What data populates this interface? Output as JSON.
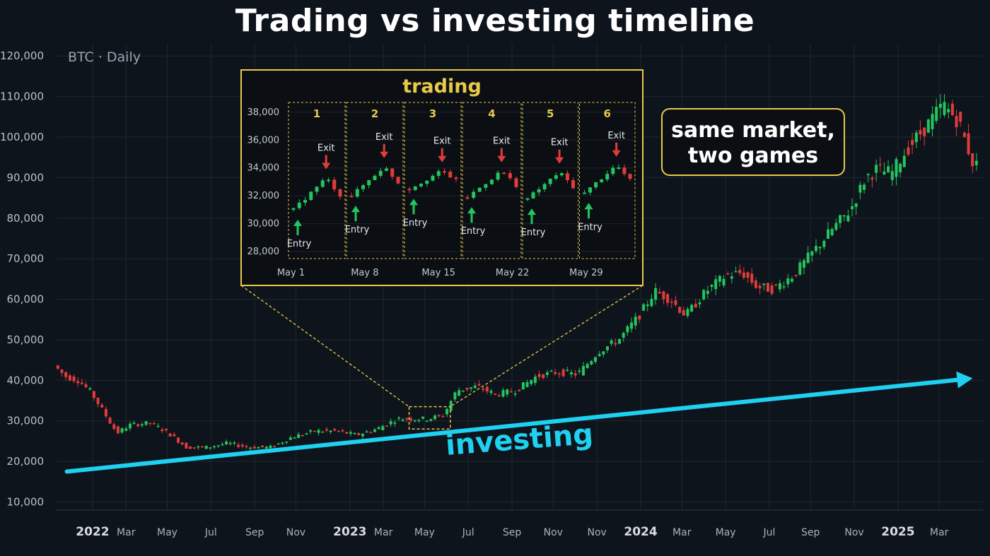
{
  "title": "Trading vs investing timeline",
  "subtitle": "BTC · Daily",
  "callout": {
    "line1": "same market,",
    "line2": "two games"
  },
  "colors": {
    "background": "#0e141b",
    "up": "#22c55e",
    "down": "#e23b3b",
    "accent_yellow": "#e9c94a",
    "investing_cyan": "#1fd0f0",
    "grid": "#1e2731"
  },
  "chart_data": [
    {
      "type": "line",
      "subtitle": "BTC · Daily",
      "ylim": [
        8000,
        123000
      ],
      "y_ticks": [
        10000,
        20000,
        30000,
        40000,
        50000,
        60000,
        70000,
        80000,
        90000,
        100000,
        110000,
        120000
      ],
      "y_tick_labels": [
        "10,000",
        "20,000",
        "30,000",
        "40,000",
        "50,000",
        "60,000",
        "70,000",
        "80,000",
        "90,000",
        "100,000",
        "110,000",
        "120,000"
      ],
      "x_ticks": [
        {
          "t": 2022.04,
          "label": "2022",
          "bold": true
        },
        {
          "t": 2022.17,
          "label": "Mar",
          "bold": false
        },
        {
          "t": 2022.33,
          "label": "May",
          "bold": false
        },
        {
          "t": 2022.5,
          "label": "Jul",
          "bold": false
        },
        {
          "t": 2022.67,
          "label": "Sep",
          "bold": false
        },
        {
          "t": 2022.83,
          "label": "Nov",
          "bold": false
        },
        {
          "t": 2023.04,
          "label": "2023",
          "bold": true
        },
        {
          "t": 2023.17,
          "label": "Mar",
          "bold": false
        },
        {
          "t": 2023.33,
          "label": "May",
          "bold": false
        },
        {
          "t": 2023.5,
          "label": "Jul",
          "bold": false
        },
        {
          "t": 2023.67,
          "label": "Sep",
          "bold": false
        },
        {
          "t": 2023.83,
          "label": "Nov",
          "bold": false
        },
        {
          "t": 2024.0,
          "label": "Nov",
          "bold": false
        },
        {
          "t": 2024.17,
          "label": "2024",
          "bold": true
        },
        {
          "t": 2024.33,
          "label": "Mar",
          "bold": false
        },
        {
          "t": 2024.5,
          "label": "May",
          "bold": false
        },
        {
          "t": 2024.67,
          "label": "Jul",
          "bold": false
        },
        {
          "t": 2024.83,
          "label": "Sep",
          "bold": false
        },
        {
          "t": 2025.0,
          "label": "Nov",
          "bold": false
        },
        {
          "t": 2025.17,
          "label": "2025",
          "bold": true
        },
        {
          "t": 2025.33,
          "label": "Mar",
          "bold": false
        }
      ],
      "xlim": [
        2021.9,
        2025.5
      ],
      "price_path": [
        [
          2021.9,
          44000
        ],
        [
          2021.95,
          41000
        ],
        [
          2022.0,
          40000
        ],
        [
          2022.05,
          37000
        ],
        [
          2022.1,
          32000
        ],
        [
          2022.15,
          27000
        ],
        [
          2022.2,
          29000
        ],
        [
          2022.28,
          29500
        ],
        [
          2022.35,
          27000
        ],
        [
          2022.42,
          23500
        ],
        [
          2022.5,
          23500
        ],
        [
          2022.58,
          24500
        ],
        [
          2022.66,
          23500
        ],
        [
          2022.75,
          23500
        ],
        [
          2022.83,
          26000
        ],
        [
          2022.92,
          27500
        ],
        [
          2023.0,
          27500
        ],
        [
          2023.08,
          26500
        ],
        [
          2023.16,
          28000
        ],
        [
          2023.24,
          30500
        ],
        [
          2023.3,
          30500
        ],
        [
          2023.36,
          30500
        ],
        [
          2023.42,
          31500
        ],
        [
          2023.47,
          37500
        ],
        [
          2023.55,
          38500
        ],
        [
          2023.62,
          36500
        ],
        [
          2023.7,
          37500
        ],
        [
          2023.78,
          41000
        ],
        [
          2023.86,
          42000
        ],
        [
          2023.94,
          41500
        ],
        [
          2024.02,
          47000
        ],
        [
          2024.1,
          50000
        ],
        [
          2024.18,
          56000
        ],
        [
          2024.24,
          62000
        ],
        [
          2024.3,
          60000
        ],
        [
          2024.36,
          56000
        ],
        [
          2024.44,
          62000
        ],
        [
          2024.52,
          66000
        ],
        [
          2024.58,
          66500
        ],
        [
          2024.64,
          63000
        ],
        [
          2024.7,
          62500
        ],
        [
          2024.78,
          66000
        ],
        [
          2024.86,
          72000
        ],
        [
          2024.94,
          78000
        ],
        [
          2025.0,
          82000
        ],
        [
          2025.06,
          90000
        ],
        [
          2025.1,
          92000
        ],
        [
          2025.16,
          91000
        ],
        [
          2025.22,
          97000
        ],
        [
          2025.3,
          103000
        ],
        [
          2025.36,
          108000
        ],
        [
          2025.42,
          104000
        ],
        [
          2025.48,
          93000
        ]
      ],
      "investing_line": {
        "label": "investing",
        "start": [
          2021.94,
          17500
        ],
        "end": [
          2025.46,
          40500
        ]
      },
      "zoom_box": {
        "t0": 2023.27,
        "t1": 2023.43,
        "y0": 28000,
        "y1": 33500
      }
    },
    {
      "type": "line",
      "title": "trading",
      "ylim": [
        27500,
        38700
      ],
      "y_ticks": [
        28000,
        30000,
        32000,
        34000,
        36000,
        38000
      ],
      "y_tick_labels": [
        "28,000",
        "30,000",
        "32,000",
        "34,000",
        "36,000",
        "38,000"
      ],
      "x_tick_labels": [
        {
          "d": 1,
          "label": "May 1"
        },
        {
          "d": 8,
          "label": "May 8"
        },
        {
          "d": 15,
          "label": "May 15"
        },
        {
          "d": 22,
          "label": "May 22"
        },
        {
          "d": 29,
          "label": "May 29"
        }
      ],
      "day_range": [
        0,
        33
      ],
      "trades": [
        {
          "n": "1",
          "d0": 0.0,
          "d1": 5.5,
          "entry": 31000,
          "exit": 33300
        },
        {
          "n": "2",
          "d0": 5.5,
          "d1": 11.0,
          "entry": 32000,
          "exit": 34100
        },
        {
          "n": "3",
          "d0": 11.0,
          "d1": 16.5,
          "entry": 32500,
          "exit": 33800
        },
        {
          "n": "4",
          "d0": 16.5,
          "d1": 22.2,
          "entry": 31900,
          "exit": 33800
        },
        {
          "n": "5",
          "d0": 22.2,
          "d1": 27.6,
          "entry": 31800,
          "exit": 33700
        },
        {
          "n": "6",
          "d0": 27.6,
          "d1": 33.0,
          "entry": 32200,
          "exit": 34200
        }
      ],
      "entry_label": "Entry",
      "exit_label": "Exit"
    }
  ]
}
